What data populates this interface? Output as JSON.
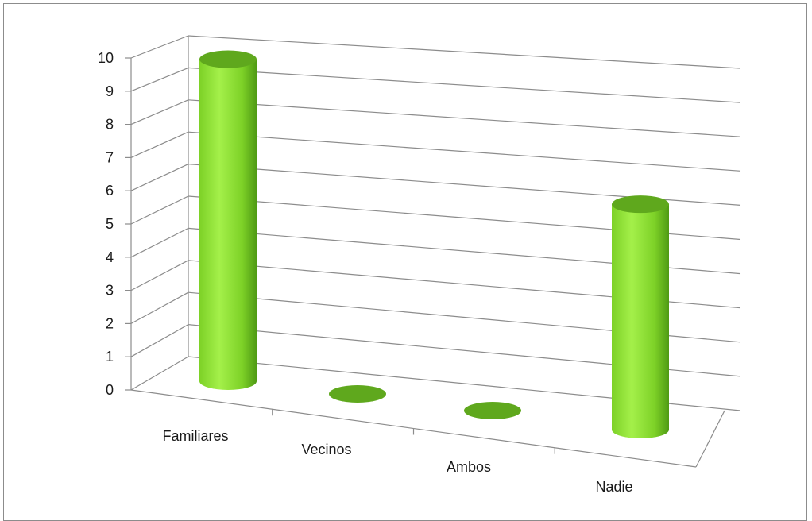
{
  "chart_data": {
    "type": "bar",
    "style": "3d-cylinder",
    "categories": [
      "Familiares",
      "Vecinos",
      "Ambos",
      "Nadie"
    ],
    "values": [
      10,
      0,
      0,
      7
    ],
    "ylim": [
      0,
      10
    ],
    "yticks": [
      "0",
      "1",
      "2",
      "3",
      "4",
      "5",
      "6",
      "7",
      "8",
      "9",
      "10"
    ],
    "grid": true,
    "legend": "none",
    "colors": {
      "bar_light": "#a4f04a",
      "bar_mid": "#7dd127",
      "bar_dark": "#4f9a14",
      "bar_top": "#5fa81d",
      "grid": "#8c8c8c",
      "axis": "#8c8c8c",
      "frame": "#8c8c8c"
    }
  }
}
